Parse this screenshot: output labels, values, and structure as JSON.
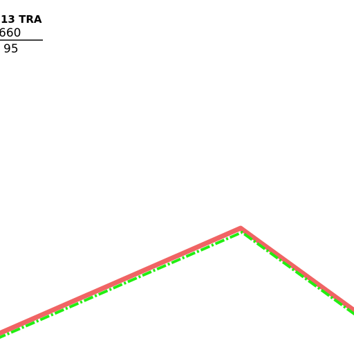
{
  "label": {
    "name": "13 TRA",
    "upper": "660",
    "lower": "95"
  }
}
